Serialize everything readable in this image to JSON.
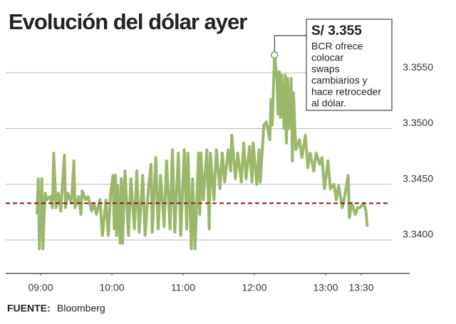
{
  "chart_data": {
    "type": "line",
    "title": "Evolución del dólar ayer",
    "source_label": "FUENTE:",
    "source": "Bloomberg",
    "annotation": {
      "title": "S/ 3.355",
      "lines": [
        "BCR ofrece",
        "colocar",
        "swaps",
        "cambiarios y",
        "hace retroceder",
        "al dólar."
      ]
    },
    "reference_line": 3.3433,
    "xlim": [
      510.6,
      832.8
    ],
    "xticks": [
      {
        "value": 540,
        "label": "09:00"
      },
      {
        "value": 600,
        "label": "10:00"
      },
      {
        "value": 660,
        "label": "11:00"
      },
      {
        "value": 720,
        "label": "12:00"
      },
      {
        "value": 780,
        "label": "13:00"
      },
      {
        "value": 810,
        "label": "13:30"
      }
    ],
    "ylim": [
      3.337,
      3.36
    ],
    "yticks": [
      {
        "value": 3.34,
        "label": "3.3400"
      },
      {
        "value": 3.345,
        "label": "3.3450"
      },
      {
        "value": 3.35,
        "label": "3.3500"
      },
      {
        "value": 3.355,
        "label": "3.3550"
      }
    ],
    "grid": true,
    "x": [
      537,
      538,
      539,
      541,
      542,
      543,
      544,
      545,
      548,
      550,
      551,
      553,
      555,
      557,
      560,
      561,
      563,
      566,
      568,
      569,
      572,
      574,
      575,
      578,
      580,
      583,
      585,
      587,
      590,
      592,
      595,
      597,
      599,
      601,
      602,
      603,
      604,
      605,
      607,
      608,
      609,
      611,
      614,
      616,
      619,
      621,
      623,
      626,
      628,
      631,
      633,
      634,
      637,
      639,
      641,
      644,
      646,
      649,
      651,
      653,
      656,
      658,
      661,
      663,
      664,
      667,
      668,
      670,
      673,
      674,
      675,
      677,
      680,
      682,
      683,
      686,
      688,
      691,
      693,
      695,
      698,
      700,
      701,
      704,
      706,
      709,
      711,
      713,
      716,
      718,
      719,
      722,
      724,
      725,
      728,
      730,
      733,
      734,
      735,
      737,
      739,
      740,
      741,
      742,
      743,
      745,
      746,
      747,
      748,
      749,
      751,
      752,
      753,
      754,
      755,
      758,
      760,
      763,
      765,
      767,
      770,
      772,
      775,
      777,
      779,
      782,
      784,
      787,
      789,
      791,
      794,
      796,
      799,
      800,
      802,
      805,
      807,
      809,
      812,
      814,
      815
    ],
    "series": [
      {
        "name": "Dólar",
        "color": "#9bb86a",
        "values": [
          3.3423,
          3.3455,
          3.3392,
          3.3455,
          3.3392,
          3.3423,
          3.3442,
          3.3436,
          3.3439,
          3.3429,
          3.3478,
          3.3429,
          3.3442,
          3.3426,
          3.3476,
          3.3429,
          3.3442,
          3.3433,
          3.3471,
          3.3429,
          3.3439,
          3.3423,
          3.3444,
          3.3436,
          3.3439,
          3.3426,
          3.3433,
          3.3423,
          3.3436,
          3.3404,
          3.3436,
          3.3404,
          3.3442,
          3.3458,
          3.341,
          3.3458,
          3.3404,
          3.3449,
          3.3397,
          3.3455,
          3.3397,
          3.3462,
          3.3404,
          3.3455,
          3.341,
          3.3462,
          3.3407,
          3.3458,
          3.3404,
          3.3449,
          3.3468,
          3.3407,
          3.3474,
          3.341,
          3.3458,
          3.3412,
          3.3471,
          3.341,
          3.3481,
          3.3407,
          3.3478,
          3.3404,
          3.3481,
          3.341,
          3.3478,
          3.3392,
          3.3455,
          3.3392,
          3.3478,
          3.3423,
          3.3478,
          3.3436,
          3.3481,
          3.341,
          3.3478,
          3.3436,
          3.3481,
          3.3446,
          3.3478,
          3.3452,
          3.3481,
          3.3462,
          3.3494,
          3.3455,
          3.3478,
          3.3452,
          3.3487,
          3.3455,
          3.3484,
          3.3452,
          3.3487,
          3.345,
          3.3481,
          3.3452,
          3.3503,
          3.3506,
          3.349,
          3.3526,
          3.3503,
          3.3566,
          3.3545,
          3.3513,
          3.3551,
          3.351,
          3.3548,
          3.35,
          3.3548,
          3.3487,
          3.3545,
          3.35,
          3.3545,
          3.3471,
          3.3532,
          3.3503,
          3.3481,
          3.349,
          3.3474,
          3.3494,
          3.3465,
          3.3478,
          3.3462,
          3.3478,
          3.3468,
          3.3474,
          3.3446,
          3.3471,
          3.3446,
          3.345,
          3.3436,
          3.3449,
          3.3429,
          3.3439,
          3.3458,
          3.342,
          3.3433,
          3.3423,
          3.3429,
          3.3429,
          3.3433,
          3.3426,
          3.3412
        ]
      }
    ]
  }
}
